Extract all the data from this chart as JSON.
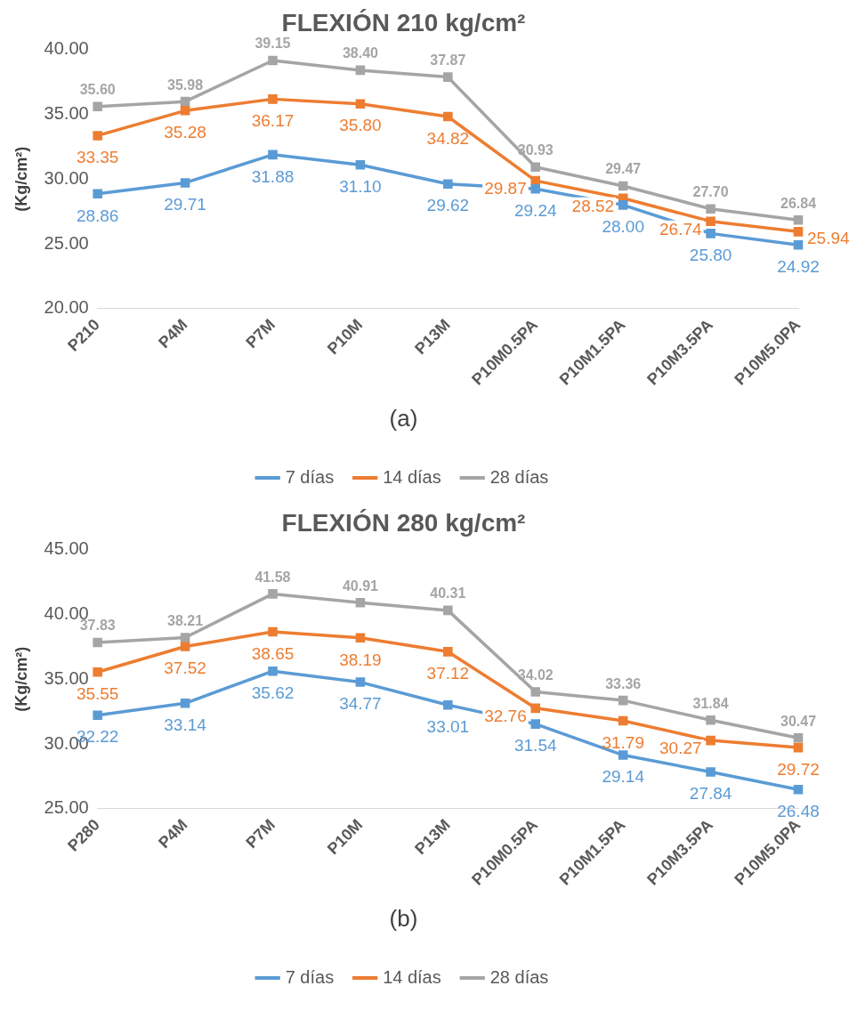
{
  "chart_data": [
    {
      "type": "line",
      "title": "FLEXIÓN 210 kg/cm²",
      "ylabel": "(Kg/cm²)",
      "annotations": [
        "(a)"
      ],
      "categories": [
        "P210",
        "P4M",
        "P7M",
        "P10M",
        "P13M",
        "P10M0.5PA",
        "P10M1.5PA",
        "P10M3.5PA",
        "P10M5.0PA"
      ],
      "series": [
        {
          "name": "7 días",
          "color": "#5b9bd5",
          "values": [
            28.86,
            29.71,
            31.88,
            31.1,
            29.62,
            29.24,
            28.0,
            25.8,
            24.92
          ],
          "value_labels": [
            "28.86",
            "29.71",
            "31.88",
            "31.10",
            "29.62",
            "29.24",
            "28.00",
            "25.80",
            "24.92"
          ]
        },
        {
          "name": "14 días",
          "color": "#ed7d31",
          "values": [
            33.35,
            35.28,
            36.17,
            35.8,
            34.82,
            29.87,
            28.52,
            26.74,
            25.94
          ],
          "value_labels": [
            "33.35",
            "35.28",
            "36.17",
            "35.80",
            "34.82",
            "29.87",
            "28.52",
            "26.74",
            "25.94"
          ]
        },
        {
          "name": "28 días",
          "color": "#a5a5a5",
          "values": [
            35.6,
            35.98,
            39.15,
            38.4,
            37.87,
            30.93,
            29.47,
            27.7,
            26.84
          ],
          "value_labels": [
            "35.60",
            "35.98",
            "39.15",
            "38.40",
            "37.87",
            "30.93",
            "29.47",
            "27.70",
            "26.84"
          ]
        }
      ],
      "ylim": [
        20,
        40
      ],
      "yticks": [
        {
          "value": 20,
          "label": "20.00"
        },
        {
          "value": 25,
          "label": "25.00"
        },
        {
          "value": 30,
          "label": "30.00"
        },
        {
          "value": 35,
          "label": "35.00"
        },
        {
          "value": 40,
          "label": "40.00"
        }
      ],
      "grid": false,
      "legend": "bottom",
      "marker": "square",
      "line_style": "solid"
    },
    {
      "type": "line",
      "title": "FLEXIÓN 280 kg/cm²",
      "ylabel": "(Kg/cm²)",
      "annotations": [
        "(b)"
      ],
      "categories": [
        "P280",
        "P4M",
        "P7M",
        "P10M",
        "P13M",
        "P10M0.5PA",
        "P10M1.5PA",
        "P10M3.5PA",
        "P10M5.0PA"
      ],
      "series": [
        {
          "name": "7 días",
          "color": "#5b9bd5",
          "values": [
            32.22,
            33.14,
            35.62,
            34.77,
            33.01,
            31.54,
            29.14,
            27.84,
            26.48
          ],
          "value_labels": [
            "32.22",
            "33.14",
            "35.62",
            "34.77",
            "33.01",
            "31.54",
            "29.14",
            "27.84",
            "26.48"
          ]
        },
        {
          "name": "14 días",
          "color": "#ed7d31",
          "values": [
            35.55,
            37.52,
            38.65,
            38.19,
            37.12,
            32.76,
            31.79,
            30.27,
            29.72
          ],
          "value_labels": [
            "35.55",
            "37.52",
            "38.65",
            "38.19",
            "37.12",
            "32.76",
            "31.79",
            "30.27",
            "29.72"
          ]
        },
        {
          "name": "28 días",
          "color": "#a5a5a5",
          "values": [
            37.83,
            38.21,
            41.58,
            40.91,
            40.31,
            34.02,
            33.36,
            31.84,
            30.47
          ],
          "value_labels": [
            "37.83",
            "38.21",
            "41.58",
            "40.91",
            "40.31",
            "34.02",
            "33.36",
            "31.84",
            "30.47"
          ]
        }
      ],
      "ylim": [
        25,
        45
      ],
      "yticks": [
        {
          "value": 25,
          "label": "25.00"
        },
        {
          "value": 30,
          "label": "30.00"
        },
        {
          "value": 35,
          "label": "35.00"
        },
        {
          "value": 40,
          "label": "40.00"
        },
        {
          "value": 45,
          "label": "45.00"
        }
      ],
      "grid": false,
      "legend": "bottom",
      "marker": "square",
      "line_style": "solid"
    }
  ]
}
